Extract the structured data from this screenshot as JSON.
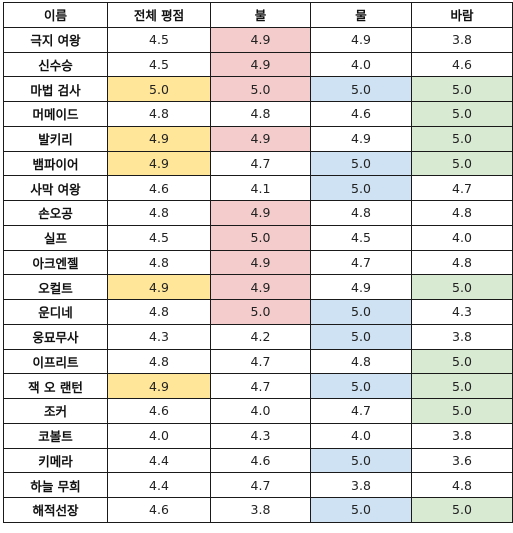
{
  "columns": [
    "이름",
    "전체 평점",
    "불",
    "물",
    "바람"
  ],
  "highlight_colors": {
    "yellow": "#ffe699",
    "red": "#f4cccc",
    "blue": "#cfe2f3",
    "green": "#d9ead3"
  },
  "rows": [
    {
      "name": "극지 여왕",
      "overall": "4.5",
      "fire": "4.9",
      "water": "4.9",
      "wind": "3.8",
      "hl": [
        "",
        "red",
        "",
        ""
      ]
    },
    {
      "name": "신수승",
      "overall": "4.5",
      "fire": "4.9",
      "water": "4.0",
      "wind": "4.6",
      "hl": [
        "",
        "red",
        "",
        ""
      ]
    },
    {
      "name": "마법 검사",
      "overall": "5.0",
      "fire": "5.0",
      "water": "5.0",
      "wind": "5.0",
      "hl": [
        "yellow",
        "red",
        "blue",
        "green"
      ]
    },
    {
      "name": "머메이드",
      "overall": "4.8",
      "fire": "4.8",
      "water": "4.6",
      "wind": "5.0",
      "hl": [
        "",
        "",
        "",
        "green"
      ]
    },
    {
      "name": "발키리",
      "overall": "4.9",
      "fire": "4.9",
      "water": "4.9",
      "wind": "5.0",
      "hl": [
        "yellow",
        "red",
        "",
        "green"
      ]
    },
    {
      "name": "뱀파이어",
      "overall": "4.9",
      "fire": "4.7",
      "water": "5.0",
      "wind": "5.0",
      "hl": [
        "yellow",
        "",
        "blue",
        "green"
      ]
    },
    {
      "name": "사막 여왕",
      "overall": "4.6",
      "fire": "4.1",
      "water": "5.0",
      "wind": "4.7",
      "hl": [
        "",
        "",
        "blue",
        ""
      ]
    },
    {
      "name": "손오공",
      "overall": "4.8",
      "fire": "4.9",
      "water": "4.8",
      "wind": "4.8",
      "hl": [
        "",
        "red",
        "",
        ""
      ]
    },
    {
      "name": "실프",
      "overall": "4.5",
      "fire": "5.0",
      "water": "4.5",
      "wind": "4.0",
      "hl": [
        "",
        "red",
        "",
        ""
      ]
    },
    {
      "name": "아크엔젤",
      "overall": "4.8",
      "fire": "4.9",
      "water": "4.7",
      "wind": "4.8",
      "hl": [
        "",
        "red",
        "",
        ""
      ]
    },
    {
      "name": "오컬트",
      "overall": "4.9",
      "fire": "4.9",
      "water": "4.9",
      "wind": "5.0",
      "hl": [
        "yellow",
        "red",
        "",
        "green"
      ]
    },
    {
      "name": "운디네",
      "overall": "4.8",
      "fire": "5.0",
      "water": "5.0",
      "wind": "4.3",
      "hl": [
        "",
        "red",
        "blue",
        ""
      ]
    },
    {
      "name": "웅묘무사",
      "overall": "4.3",
      "fire": "4.2",
      "water": "5.0",
      "wind": "3.8",
      "hl": [
        "",
        "",
        "blue",
        ""
      ]
    },
    {
      "name": "이프리트",
      "overall": "4.8",
      "fire": "4.7",
      "water": "4.8",
      "wind": "5.0",
      "hl": [
        "",
        "",
        "",
        "green"
      ]
    },
    {
      "name": "잭 오 랜턴",
      "overall": "4.9",
      "fire": "4.7",
      "water": "5.0",
      "wind": "5.0",
      "hl": [
        "yellow",
        "",
        "blue",
        "green"
      ]
    },
    {
      "name": "조커",
      "overall": "4.6",
      "fire": "4.0",
      "water": "4.7",
      "wind": "5.0",
      "hl": [
        "",
        "",
        "",
        "green"
      ]
    },
    {
      "name": "코볼트",
      "overall": "4.0",
      "fire": "4.3",
      "water": "4.0",
      "wind": "3.8",
      "hl": [
        "",
        "",
        "",
        ""
      ]
    },
    {
      "name": "키메라",
      "overall": "4.4",
      "fire": "4.6",
      "water": "5.0",
      "wind": "3.6",
      "hl": [
        "",
        "",
        "blue",
        ""
      ]
    },
    {
      "name": "하늘 무희",
      "overall": "4.4",
      "fire": "4.7",
      "water": "3.8",
      "wind": "4.8",
      "hl": [
        "",
        "",
        "",
        ""
      ]
    },
    {
      "name": "해적선장",
      "overall": "4.6",
      "fire": "3.8",
      "water": "5.0",
      "wind": "5.0",
      "hl": [
        "",
        "",
        "blue",
        "green"
      ]
    }
  ]
}
